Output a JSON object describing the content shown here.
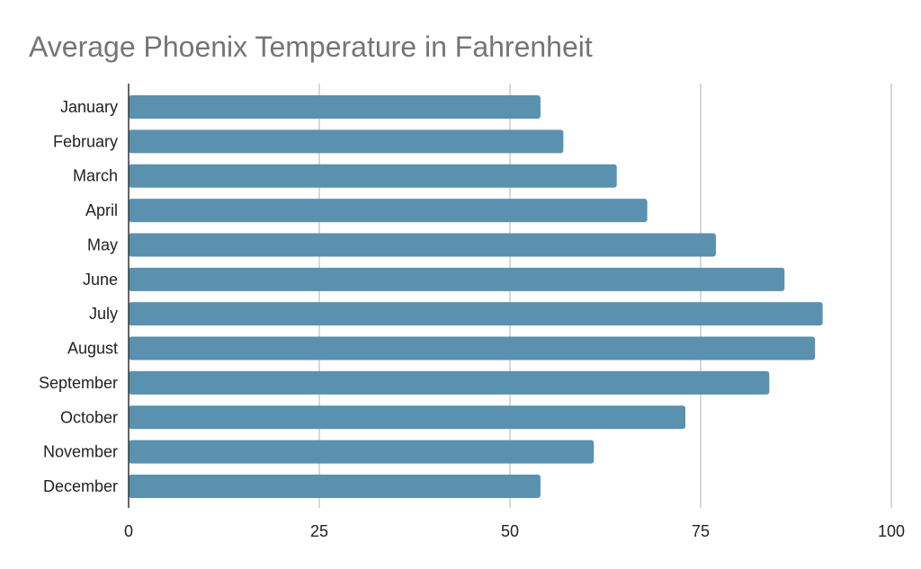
{
  "chart_data": {
    "type": "bar",
    "orientation": "horizontal",
    "title": "Average Phoenix Temperature in Fahrenheit",
    "xlabel": "",
    "ylabel": "",
    "categories": [
      "January",
      "February",
      "March",
      "April",
      "May",
      "June",
      "July",
      "August",
      "September",
      "October",
      "November",
      "December"
    ],
    "values": [
      54,
      57,
      64,
      68,
      77,
      86,
      91,
      90,
      84,
      73,
      61,
      54
    ],
    "xlim": [
      0,
      100
    ],
    "xticks": [
      "0",
      "25",
      "50",
      "75",
      "100"
    ],
    "grid": true,
    "legend": "none",
    "bar_color": "#5a91ae",
    "grid_color": "#cccccc"
  }
}
